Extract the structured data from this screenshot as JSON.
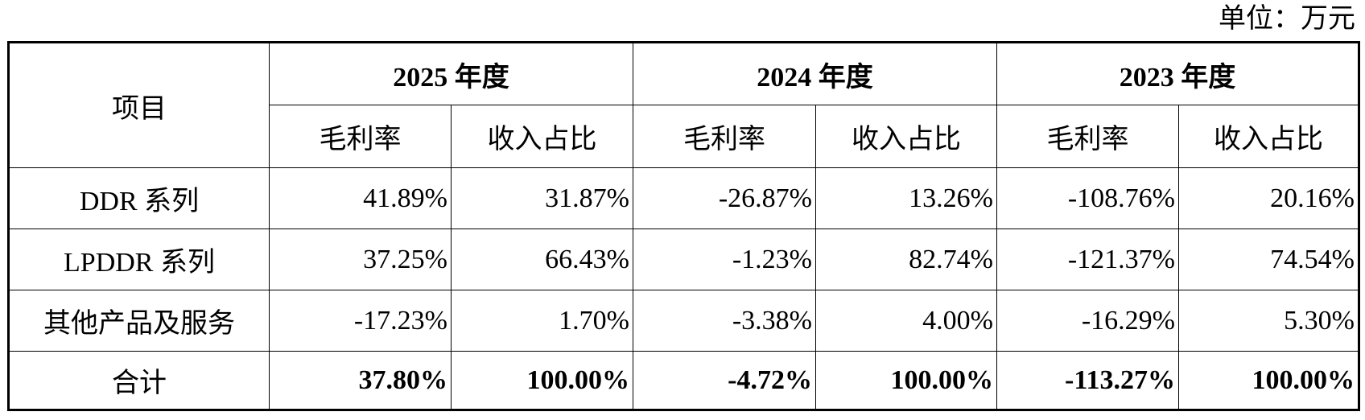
{
  "unit": "单位：万元",
  "table": {
    "header": {
      "item": "项目",
      "years": [
        "2025 年度",
        "2024 年度",
        "2023 年度"
      ],
      "sub": [
        "毛利率",
        "收入占比",
        "毛利率",
        "收入占比",
        "毛利率",
        "收入占比"
      ]
    },
    "rows": [
      {
        "label": "DDR 系列",
        "values": [
          "41.89%",
          "31.87%",
          "-26.87%",
          "13.26%",
          "-108.76%",
          "20.16%"
        ]
      },
      {
        "label": "LPDDR 系列",
        "values": [
          "37.25%",
          "66.43%",
          "-1.23%",
          "82.74%",
          "-121.37%",
          "74.54%"
        ]
      },
      {
        "label": "其他产品及服务",
        "values": [
          "-17.23%",
          "1.70%",
          "-3.38%",
          "4.00%",
          "-16.29%",
          "5.30%"
        ]
      }
    ],
    "total": {
      "label": "合计",
      "values": [
        "37.80%",
        "100.00%",
        "-4.72%",
        "100.00%",
        "-113.27%",
        "100.00%"
      ]
    }
  }
}
